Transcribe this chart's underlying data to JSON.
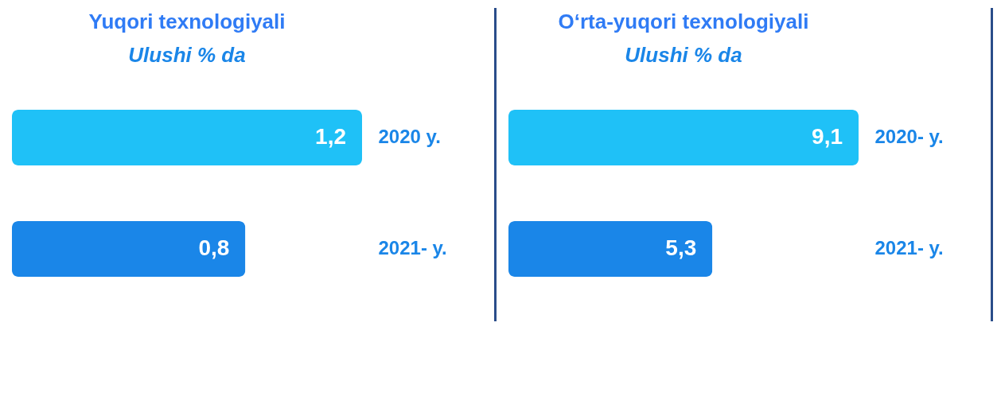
{
  "chart_data": [
    {
      "type": "bar",
      "orientation": "horizontal",
      "title": "Yuqori texnologiyali",
      "subtitle": "Ulushi % da",
      "categories": [
        "2020 y.",
        "2021- y."
      ],
      "values": [
        1.2,
        0.8
      ],
      "colors": [
        "#1fc1f7",
        "#1a86e8"
      ],
      "value_labels": [
        "1,2",
        "0,8"
      ]
    },
    {
      "type": "bar",
      "orientation": "horizontal",
      "title": "O‘rta-yuqori texnologiyali",
      "subtitle": "Ulushi % da",
      "categories": [
        "2020- y.",
        "2021- y."
      ],
      "values": [
        9.1,
        5.3
      ],
      "colors": [
        "#1fc1f7",
        "#1a86e8"
      ],
      "value_labels": [
        "9,1",
        "5,3"
      ]
    }
  ]
}
